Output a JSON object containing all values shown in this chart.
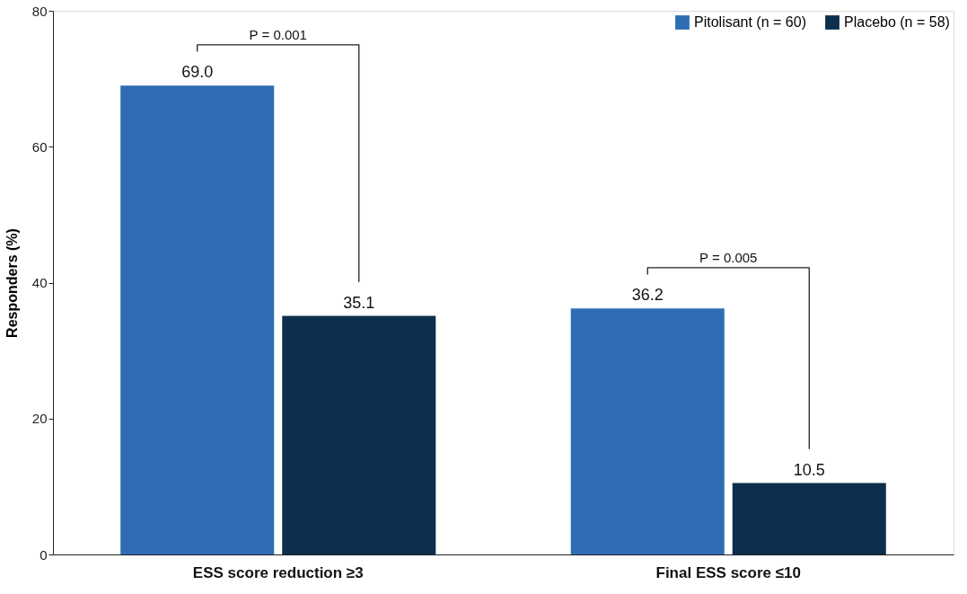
{
  "chart_data": {
    "type": "bar",
    "ylabel": "Responders (%)",
    "categories": [
      "ESS score reduction ≥3",
      "Final ESS score ≤10"
    ],
    "series": [
      {
        "name": "Pitolisant (n = 60)",
        "color": "#2e6db4",
        "values": [
          69.0,
          36.2
        ]
      },
      {
        "name": "Placebo (n = 58)",
        "color": "#0d2e4d",
        "values": [
          35.1,
          10.5
        ]
      }
    ],
    "ylim": [
      0,
      80
    ],
    "yticks": [
      0,
      20,
      40,
      60,
      80
    ],
    "grid": false,
    "legend": "top right",
    "value_labels": [
      [
        "69.0",
        "36.2"
      ],
      [
        "35.1",
        "10.5"
      ]
    ],
    "annotations": [
      "P = 0.001",
      "P = 0.005"
    ]
  }
}
